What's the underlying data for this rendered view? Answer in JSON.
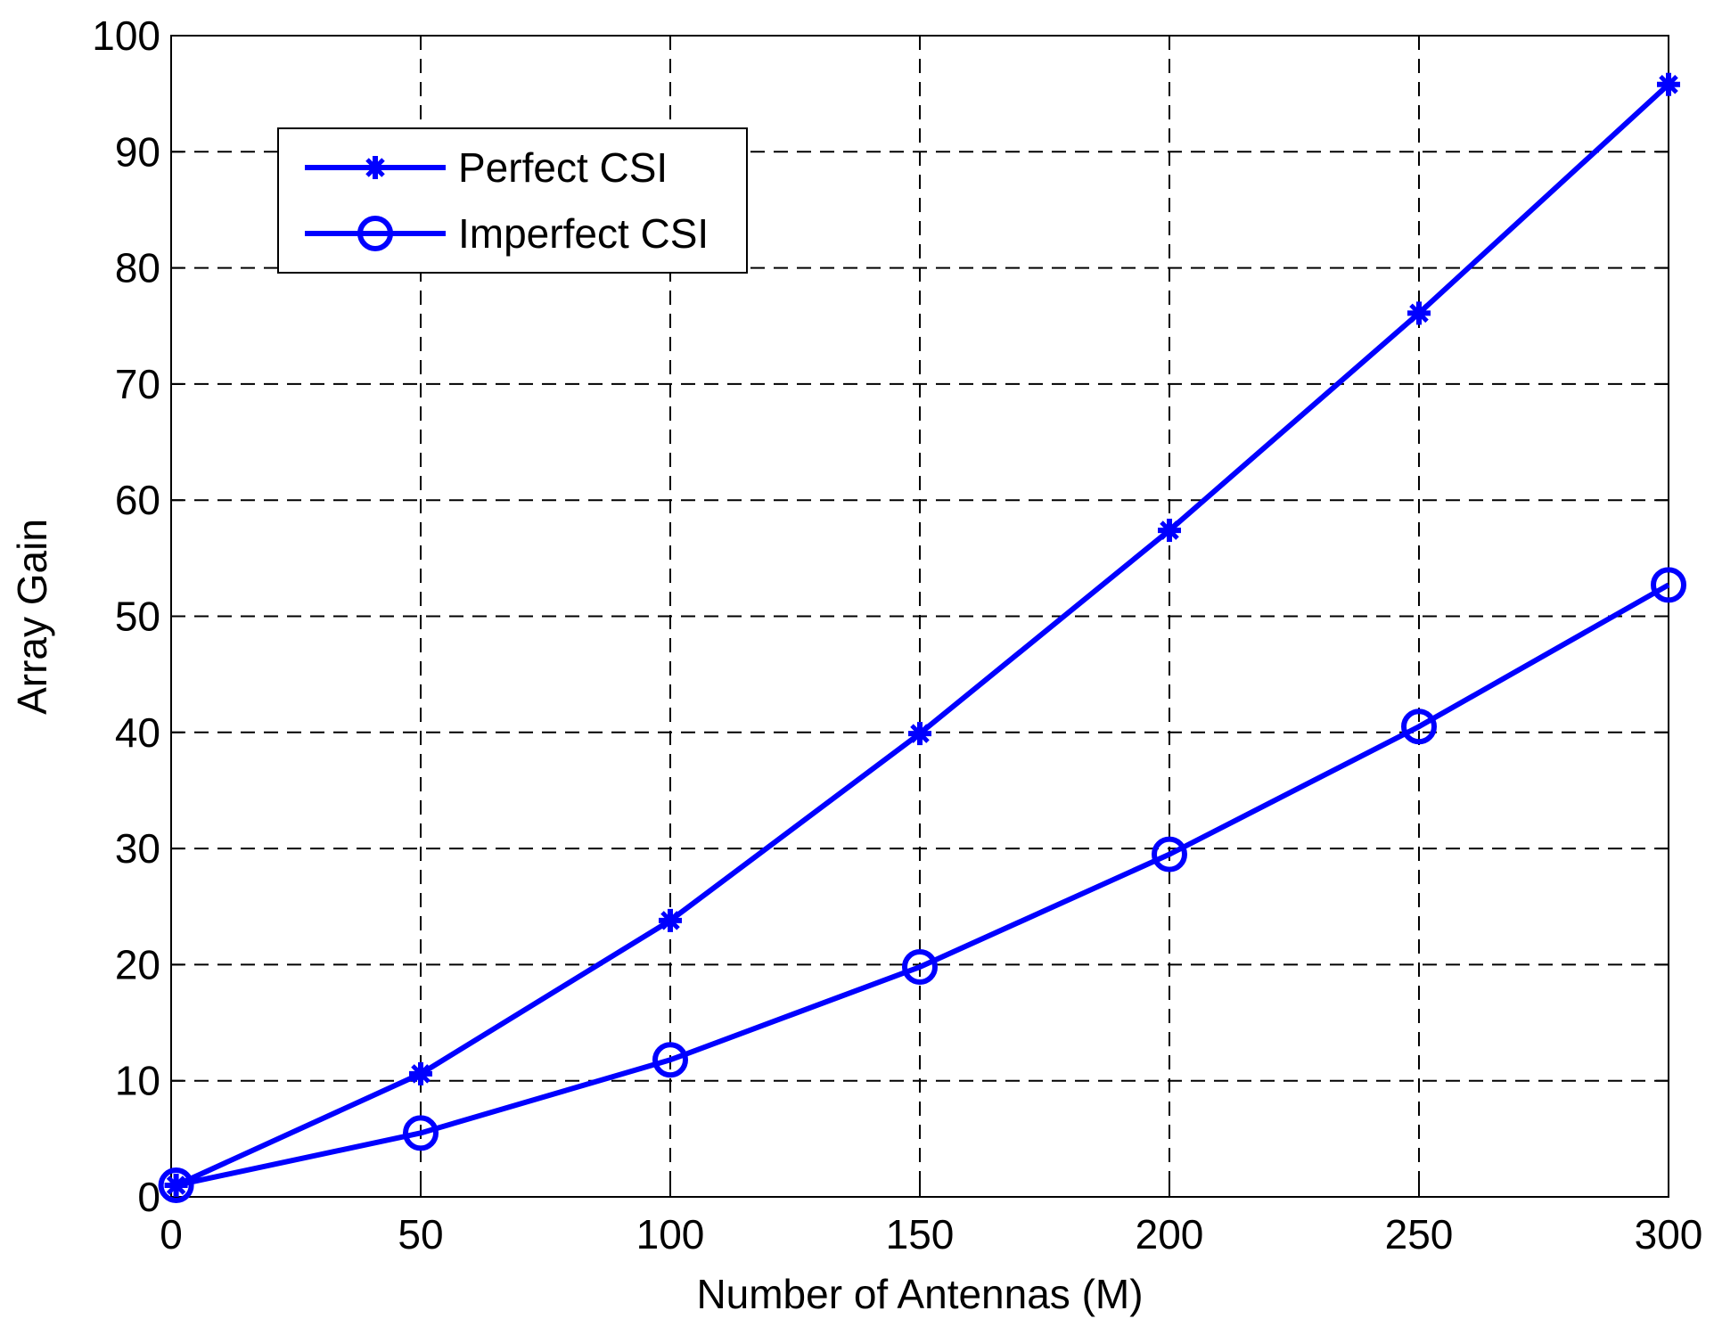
{
  "chart_data": {
    "type": "line",
    "xlabel": "Number of Antennas (M)",
    "ylabel": "Array Gain",
    "xlim": [
      0,
      300
    ],
    "ylim": [
      0,
      100
    ],
    "xticks": [
      0,
      50,
      100,
      150,
      200,
      250,
      300
    ],
    "yticks": [
      0,
      10,
      20,
      30,
      40,
      50,
      60,
      70,
      80,
      90,
      100
    ],
    "xtick_labels": [
      "0",
      "50",
      "100",
      "150",
      "200",
      "250",
      "300"
    ],
    "ytick_labels": [
      "0",
      "10",
      "20",
      "30",
      "40",
      "50",
      "60",
      "70",
      "80",
      "90",
      "100"
    ],
    "grid": true,
    "grid_style": "dashed",
    "legend_position": "top-left",
    "x": [
      1,
      50,
      100,
      150,
      200,
      250,
      300
    ],
    "series": [
      {
        "name": "Perfect CSI",
        "marker": "star",
        "color": "#0000ff",
        "values": [
          1,
          10.6,
          23.8,
          39.9,
          57.4,
          76.1,
          95.8
        ]
      },
      {
        "name": "Imperfect CSI",
        "marker": "circle",
        "color": "#0000ff",
        "values": [
          1,
          5.5,
          11.8,
          19.8,
          29.5,
          40.5,
          52.7
        ]
      }
    ]
  }
}
